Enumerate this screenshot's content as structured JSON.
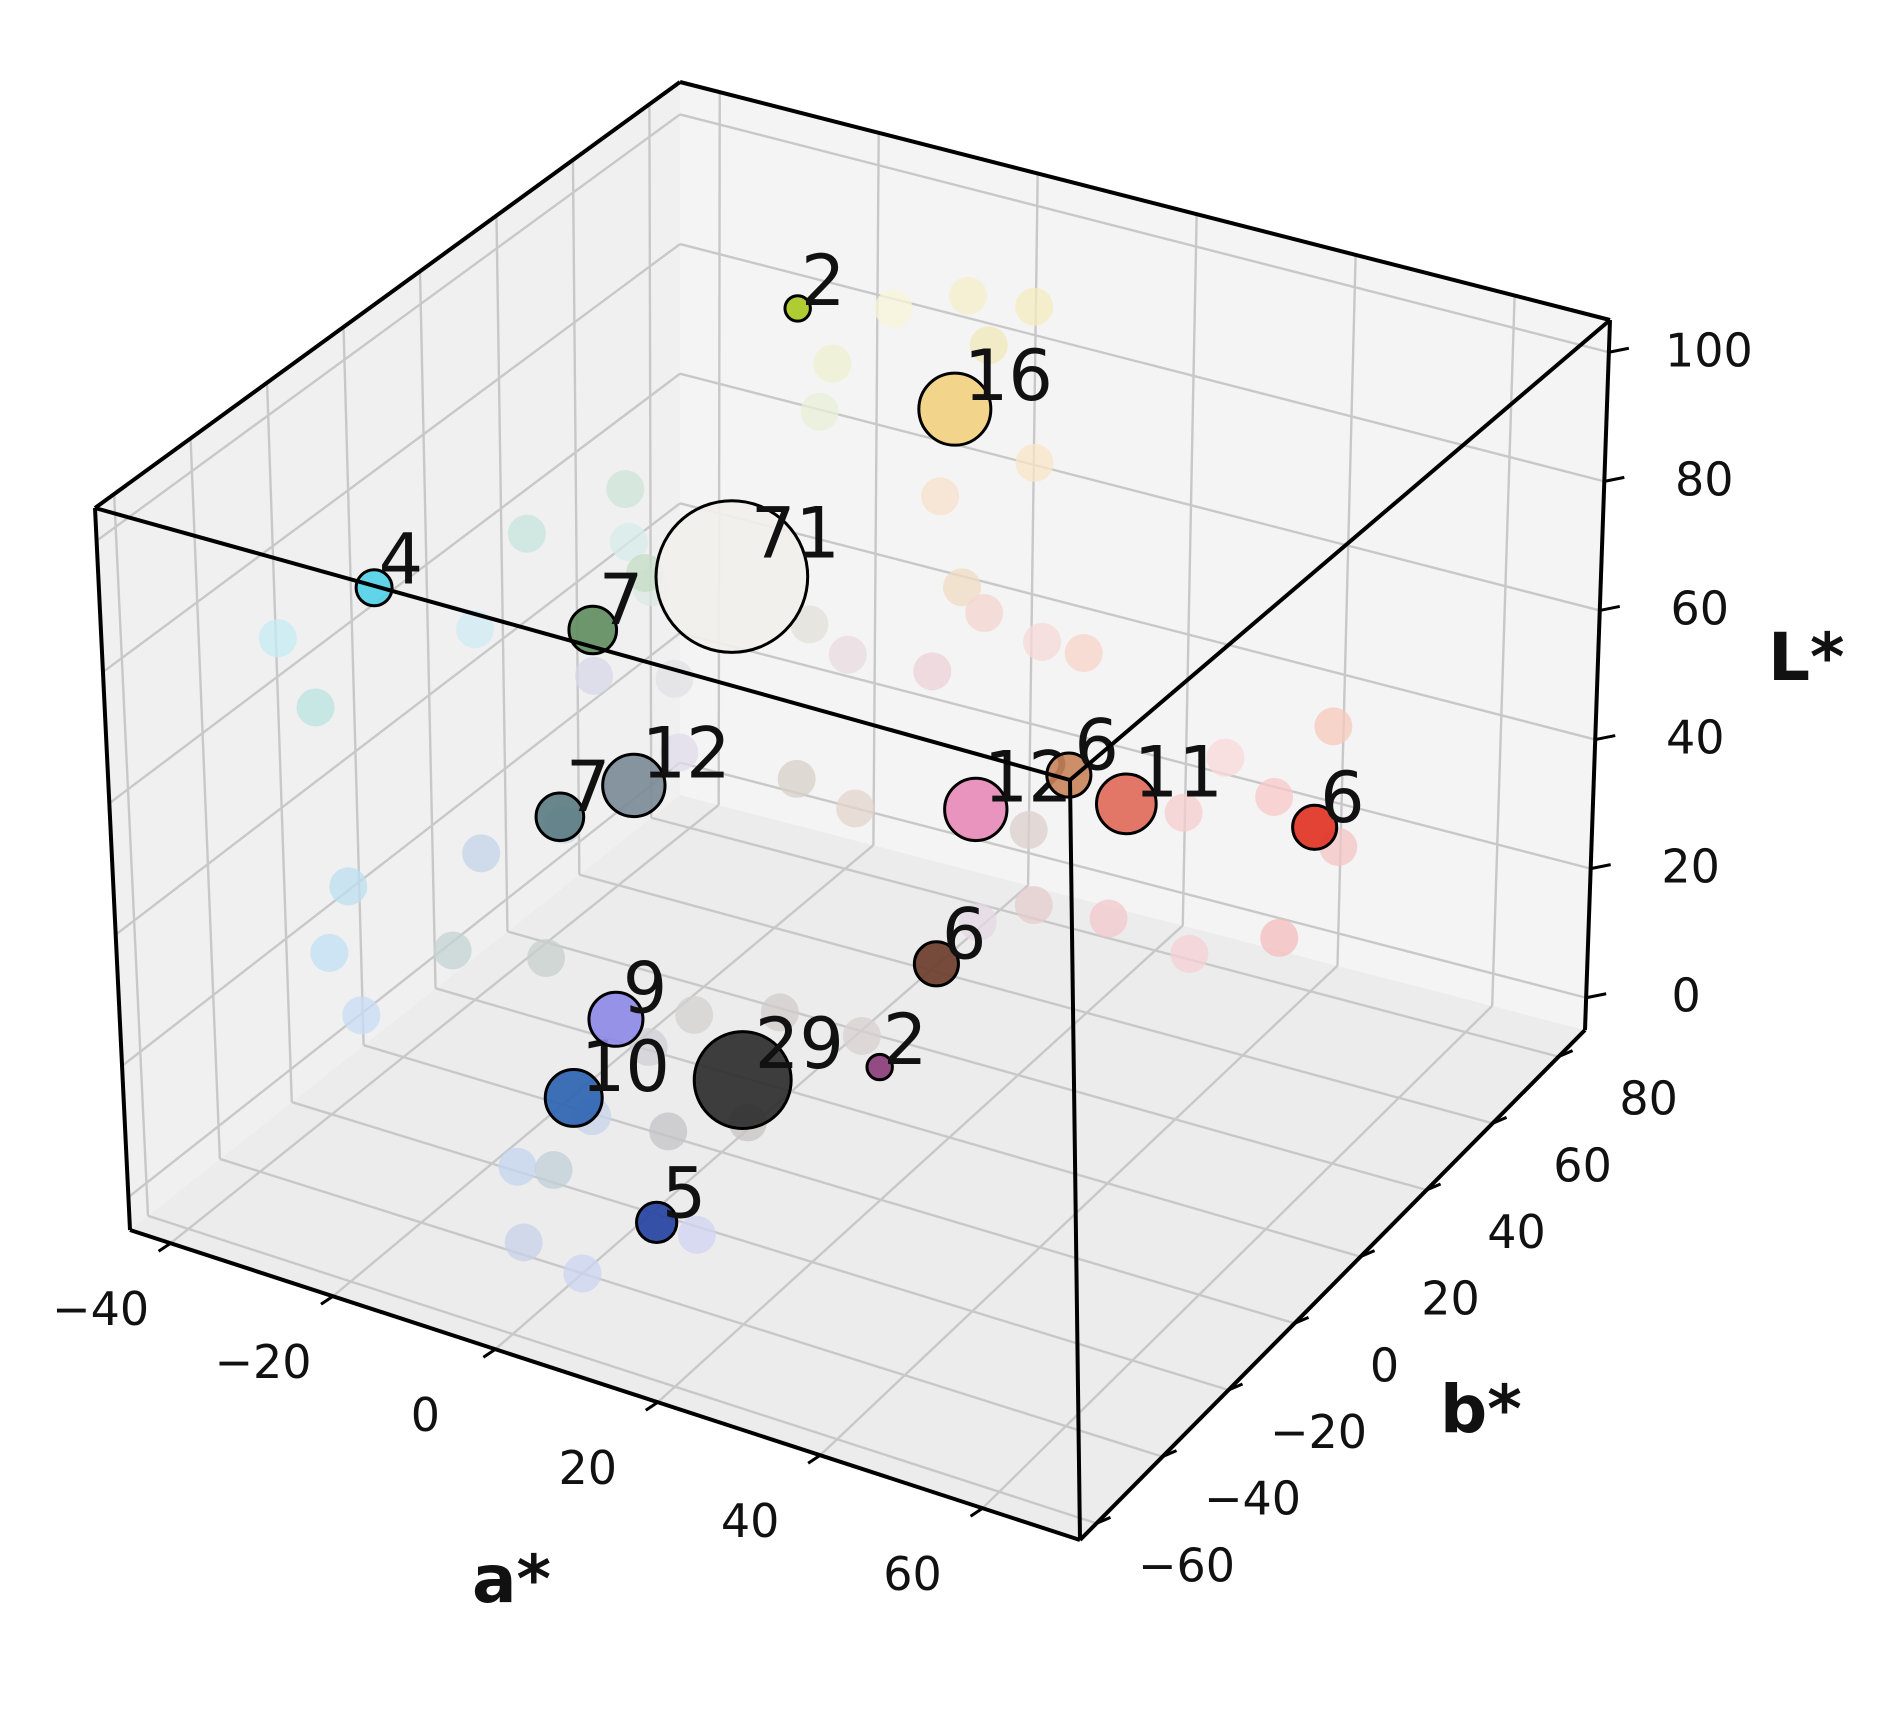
{
  "chart_data": {
    "type": "scatter3d",
    "axes": {
      "x": {
        "label": "a*",
        "ticks": [
          -40,
          -20,
          0,
          20,
          40,
          60
        ],
        "tick_labels": [
          "−40",
          "−20",
          "0",
          "20",
          "40",
          "60"
        ],
        "range": [
          -45,
          72
        ]
      },
      "y": {
        "label": "b*",
        "ticks": [
          -60,
          -40,
          -20,
          0,
          20,
          40,
          60,
          80
        ],
        "tick_labels": [
          "−60",
          "−40",
          "−20",
          "0",
          "20",
          "40",
          "60",
          "80"
        ],
        "range": [
          -65,
          88
        ]
      },
      "z": {
        "label": "L*",
        "ticks": [
          0,
          20,
          40,
          60,
          80,
          100
        ],
        "tick_labels": [
          "0",
          "20",
          "40",
          "60",
          "80",
          "100"
        ],
        "range": [
          -5,
          105
        ]
      }
    },
    "grid": true,
    "clusters": [
      {
        "count": 2,
        "label": "2",
        "a": -10,
        "b": 45,
        "L": 100,
        "color": "#a8c81e"
      },
      {
        "count": 16,
        "label": "16",
        "a": 5,
        "b": 55,
        "L": 85,
        "color": "#f2d080"
      },
      {
        "count": 71,
        "label": "71",
        "a": 0,
        "b": 5,
        "L": 80,
        "color": "#f2efec"
      },
      {
        "count": 4,
        "label": "4",
        "a": -35,
        "b": -15,
        "L": 75,
        "color": "#50d0e8"
      },
      {
        "count": 7,
        "label": "7",
        "a": -22,
        "b": 15,
        "L": 60,
        "color": "#5e8c5e"
      },
      {
        "count": 12,
        "label": "12",
        "a": -8,
        "b": -5,
        "L": 50,
        "color": "#7a8a96"
      },
      {
        "count": 7,
        "label": "7",
        "a": -15,
        "b": -10,
        "L": 45,
        "color": "#5a7a82"
      },
      {
        "count": 9,
        "label": "9",
        "a": 5,
        "b": -40,
        "L": 35,
        "color": "#8c88e8"
      },
      {
        "count": 12,
        "label": "12",
        "a": 30,
        "b": 5,
        "L": 55,
        "color": "#e88ab8"
      },
      {
        "count": 6,
        "label": "6",
        "a": 35,
        "b": 20,
        "L": 55,
        "color": "#c8845a"
      },
      {
        "count": 11,
        "label": "11",
        "a": 40,
        "b": 25,
        "L": 50,
        "color": "#e06858"
      },
      {
        "count": 6,
        "label": "6",
        "a": 55,
        "b": 45,
        "L": 42,
        "color": "#e03020"
      },
      {
        "count": 6,
        "label": "6",
        "a": 25,
        "b": 5,
        "L": 30,
        "color": "#6a3a28"
      },
      {
        "count": 2,
        "label": "2",
        "a": 20,
        "b": 0,
        "L": 15,
        "color": "#8a3a78"
      },
      {
        "count": 10,
        "label": "10",
        "a": -5,
        "b": -30,
        "L": 15,
        "color": "#2a62b0"
      },
      {
        "count": 29,
        "label": "29",
        "a": 5,
        "b": -5,
        "L": 10,
        "color": "#2a2a2a"
      },
      {
        "count": 5,
        "label": "5",
        "a": 5,
        "b": -30,
        "L": 0,
        "color": "#2040a0"
      }
    ],
    "background_points": [
      {
        "a": -5,
        "b": 60,
        "L": 95,
        "color": "#f8f4d8"
      },
      {
        "a": 2,
        "b": 65,
        "L": 97,
        "color": "#f6efc8"
      },
      {
        "a": 8,
        "b": 70,
        "L": 95,
        "color": "#f4ecc0"
      },
      {
        "a": 6,
        "b": 62,
        "L": 92,
        "color": "#f2e8b8"
      },
      {
        "a": -8,
        "b": 50,
        "L": 90,
        "color": "#eef0d0"
      },
      {
        "a": -5,
        "b": 40,
        "L": 88,
        "color": "#eaf0d8"
      },
      {
        "a": 15,
        "b": 55,
        "L": 80,
        "color": "#fae6c8"
      },
      {
        "a": 10,
        "b": 40,
        "L": 80,
        "color": "#f8e2cc"
      },
      {
        "a": 15,
        "b": 35,
        "L": 70,
        "color": "#f0dcc4"
      },
      {
        "a": 20,
        "b": 30,
        "L": 70,
        "color": "#f4d6d0"
      },
      {
        "a": 25,
        "b": 35,
        "L": 65,
        "color": "#f6d8d8"
      },
      {
        "a": 28,
        "b": 40,
        "L": 62,
        "color": "#f7d4c8"
      },
      {
        "a": 18,
        "b": 20,
        "L": 65,
        "color": "#ecd2d8"
      },
      {
        "a": 12,
        "b": 10,
        "L": 70,
        "color": "#eadce2"
      },
      {
        "a": 5,
        "b": 15,
        "L": 70,
        "color": "#e2e0da"
      },
      {
        "a": -5,
        "b": 0,
        "L": 65,
        "color": "#e2e2e6"
      },
      {
        "a": -10,
        "b": 5,
        "L": 75,
        "color": "#dde8e4"
      },
      {
        "a": -15,
        "b": 10,
        "L": 78,
        "color": "#d6ecea"
      },
      {
        "a": -20,
        "b": 20,
        "L": 80,
        "color": "#cde4d8"
      },
      {
        "a": -30,
        "b": 15,
        "L": 72,
        "color": "#c6e6dc"
      },
      {
        "a": -25,
        "b": -10,
        "L": 70,
        "color": "#d0ecf4"
      },
      {
        "a": -40,
        "b": -30,
        "L": 72,
        "color": "#c6ecf4"
      },
      {
        "a": -38,
        "b": -25,
        "L": 60,
        "color": "#b8e4e0"
      },
      {
        "a": -20,
        "b": 25,
        "L": 65,
        "color": "#c4dcc4"
      },
      {
        "a": -15,
        "b": 0,
        "L": 62,
        "color": "#d8d8e8"
      },
      {
        "a": 0,
        "b": -10,
        "L": 60,
        "color": "#e0dcec"
      },
      {
        "a": 10,
        "b": 0,
        "L": 55,
        "color": "#d8d0c8"
      },
      {
        "a": 15,
        "b": 5,
        "L": 50,
        "color": "#e4d6cc"
      },
      {
        "a": -10,
        "b": -20,
        "L": 50,
        "color": "#c8d6e2"
      },
      {
        "a": -18,
        "b": -25,
        "L": 45,
        "color": "#c4d4e8"
      },
      {
        "a": -30,
        "b": -35,
        "L": 40,
        "color": "#bcdff2"
      },
      {
        "a": -28,
        "b": -45,
        "L": 35,
        "color": "#c0e0f4"
      },
      {
        "a": -22,
        "b": -50,
        "L": 30,
        "color": "#c8dcf4"
      },
      {
        "a": -15,
        "b": -40,
        "L": 38,
        "color": "#c4d4d4"
      },
      {
        "a": -8,
        "b": -30,
        "L": 35,
        "color": "#c8d0cc"
      },
      {
        "a": 8,
        "b": -25,
        "L": 30,
        "color": "#d4d0d0"
      },
      {
        "a": 12,
        "b": -10,
        "L": 25,
        "color": "#d2cccc"
      },
      {
        "a": 20,
        "b": -5,
        "L": 22,
        "color": "#d8d0d0"
      },
      {
        "a": 28,
        "b": 10,
        "L": 35,
        "color": "#e4d8e4"
      },
      {
        "a": 30,
        "b": 20,
        "L": 45,
        "color": "#dcd0cc"
      },
      {
        "a": 35,
        "b": 10,
        "L": 40,
        "color": "#e6cccc"
      },
      {
        "a": 45,
        "b": 30,
        "L": 48,
        "color": "#f6cece"
      },
      {
        "a": 48,
        "b": 35,
        "L": 55,
        "color": "#fadada"
      },
      {
        "a": 52,
        "b": 40,
        "L": 48,
        "color": "#f8c8c8"
      },
      {
        "a": 55,
        "b": 50,
        "L": 55,
        "color": "#f8cabc"
      },
      {
        "a": 58,
        "b": 45,
        "L": 40,
        "color": "#f4c4c4"
      },
      {
        "a": 55,
        "b": 35,
        "L": 30,
        "color": "#f4bcbc"
      },
      {
        "a": 48,
        "b": 25,
        "L": 30,
        "color": "#f6d0d4"
      },
      {
        "a": 40,
        "b": 20,
        "L": 35,
        "color": "#f4c8cc"
      },
      {
        "a": 0,
        "b": -20,
        "L": 20,
        "color": "#d0d0d6"
      },
      {
        "a": 10,
        "b": -15,
        "L": 10,
        "color": "#c8c4c4"
      },
      {
        "a": 0,
        "b": -15,
        "L": 5,
        "color": "#c4c4c8"
      },
      {
        "a": -5,
        "b": -25,
        "L": 10,
        "color": "#c8d4ea"
      },
      {
        "a": -10,
        "b": -35,
        "L": 5,
        "color": "#c4d4ee"
      },
      {
        "a": -5,
        "b": -45,
        "L": 0,
        "color": "#c8d2ea"
      },
      {
        "a": 0,
        "b": -40,
        "L": -5,
        "color": "#ccd4f0"
      },
      {
        "a": 10,
        "b": -30,
        "L": 0,
        "color": "#d0d4f2"
      },
      {
        "a": -10,
        "b": -25,
        "L": 0,
        "color": "#c0d0d8"
      }
    ]
  }
}
